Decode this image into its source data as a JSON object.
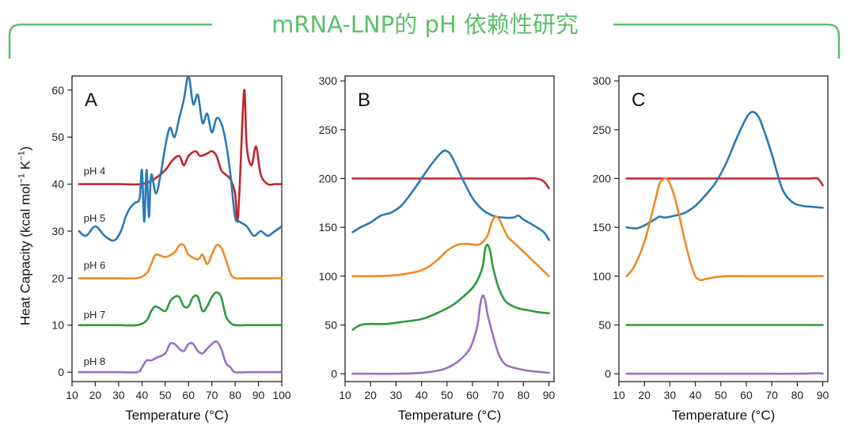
{
  "header": {
    "title": "mRNA-LNP的 pH 依赖性研究",
    "bracket_color": "#5cbf6a"
  },
  "y_axis_label": {
    "main": "Heat Capacity (kcal mol",
    "exp1": "−1",
    "mid": " K",
    "exp2": "−1",
    "end": ")"
  },
  "series_colors": {
    "pH 4": "#c0272d",
    "pH 5": "#2a7ab5",
    "pH 6": "#f08a24",
    "pH 7": "#2e9a3a",
    "pH 8": "#9a70c2"
  },
  "chart_data": [
    {
      "id": "A",
      "type": "line",
      "panel_label": "A",
      "xlabel": "Temperature (°C)",
      "ylabel": "Heat Capacity (kcal mol⁻¹ K⁻¹)",
      "xlim": [
        10,
        100
      ],
      "ylim": [
        -2,
        63
      ],
      "xticks": [
        10,
        20,
        30,
        40,
        50,
        60,
        70,
        80,
        90,
        100
      ],
      "yticks": [
        0,
        10,
        20,
        30,
        40,
        50,
        60
      ],
      "series_labels": [
        {
          "text": "pH 4",
          "series": "pH 4",
          "x": 15,
          "y": 42
        },
        {
          "text": "pH 5",
          "series": "pH 5",
          "x": 15,
          "y": 32
        },
        {
          "text": "pH 6",
          "series": "pH 6",
          "x": 15,
          "y": 22
        },
        {
          "text": "pH 7",
          "series": "pH 7",
          "x": 15,
          "y": 11.5
        },
        {
          "text": "pH 8",
          "series": "pH 8",
          "x": 15,
          "y": 1.5
        }
      ],
      "series": [
        {
          "name": "pH 4",
          "x": [
            13,
            20,
            30,
            40,
            45,
            50,
            53,
            56,
            58,
            60,
            63,
            65,
            68,
            70,
            72,
            74,
            76,
            78,
            80,
            81,
            82,
            83,
            84,
            85,
            87,
            89,
            91,
            94,
            97,
            100
          ],
          "y": [
            40,
            40,
            40,
            40,
            41,
            43,
            45,
            46,
            44,
            46,
            47,
            46,
            46.5,
            47,
            46,
            43,
            42,
            41,
            38,
            32,
            40,
            52,
            60,
            48,
            44,
            48,
            42,
            40,
            40,
            40
          ]
        },
        {
          "name": "pH 5",
          "x": [
            13,
            16,
            20,
            24,
            28,
            31,
            33,
            35,
            37,
            39,
            40,
            41,
            42,
            43,
            44,
            46,
            48,
            50,
            52,
            54,
            56,
            58,
            60,
            62,
            64,
            66,
            68,
            70,
            72,
            74,
            76,
            78,
            80,
            82,
            85,
            88,
            91,
            94,
            97,
            100
          ],
          "y": [
            30,
            29,
            31,
            29,
            28,
            30,
            33,
            35,
            36,
            37,
            43,
            32,
            43,
            33,
            42,
            38,
            42,
            48,
            52,
            50,
            54,
            58,
            63,
            57,
            59,
            53,
            55,
            51,
            54,
            53,
            49,
            42,
            33,
            32,
            31,
            29,
            30,
            29,
            30,
            31
          ]
        },
        {
          "name": "pH 6",
          "x": [
            13,
            20,
            30,
            38,
            42,
            44,
            46,
            50,
            54,
            56,
            58,
            60,
            64,
            66,
            68,
            70,
            72,
            74,
            76,
            78,
            80,
            85,
            90,
            95,
            100
          ],
          "y": [
            20,
            20,
            20,
            20,
            21,
            23,
            25,
            24.5,
            25.5,
            27,
            27,
            25,
            24,
            25,
            23,
            25,
            27,
            26.5,
            24,
            21,
            20,
            20,
            20,
            20,
            20
          ]
        },
        {
          "name": "pH 7",
          "x": [
            13,
            20,
            30,
            38,
            42,
            44,
            46,
            50,
            52,
            54,
            56,
            58,
            60,
            62,
            64,
            66,
            68,
            70,
            72,
            74,
            76,
            78,
            80,
            85,
            90,
            95,
            100
          ],
          "y": [
            10,
            10,
            10,
            10,
            11,
            13,
            14,
            13,
            15,
            16,
            16,
            14,
            14,
            16,
            16,
            13,
            14,
            16,
            17,
            16,
            12,
            10.5,
            10,
            10,
            10,
            10,
            10
          ]
        },
        {
          "name": "pH 8",
          "x": [
            13,
            20,
            30,
            38,
            40,
            42,
            44,
            46,
            50,
            52,
            54,
            56,
            58,
            60,
            62,
            64,
            66,
            68,
            70,
            72,
            74,
            76,
            78,
            80,
            85,
            90,
            95,
            100
          ],
          "y": [
            0,
            0,
            0,
            0,
            1,
            2.5,
            2.5,
            3,
            4,
            6,
            6,
            5,
            4.5,
            6,
            6,
            4.5,
            4,
            5,
            6,
            6.5,
            5,
            2,
            1,
            0,
            0,
            0,
            0,
            0
          ]
        }
      ]
    },
    {
      "id": "B",
      "type": "line",
      "panel_label": "B",
      "xlabel": "Temperature (°C)",
      "xlim": [
        10,
        92
      ],
      "ylim": [
        -8,
        305
      ],
      "xticks": [
        10,
        20,
        30,
        40,
        50,
        60,
        70,
        80,
        90
      ],
      "yticks": [
        0,
        50,
        100,
        150,
        200,
        250,
        300
      ],
      "series": [
        {
          "name": "pH 4",
          "x": [
            13,
            20,
            30,
            40,
            50,
            60,
            70,
            80,
            85,
            88,
            90
          ],
          "y": [
            200,
            200,
            200,
            200,
            200,
            200,
            200,
            200,
            200,
            197,
            190
          ]
        },
        {
          "name": "pH 5",
          "x": [
            13,
            16,
            20,
            24,
            28,
            32,
            36,
            40,
            44,
            48,
            50,
            52,
            56,
            60,
            64,
            68,
            72,
            76,
            78,
            80,
            84,
            88,
            90
          ],
          "y": [
            145,
            150,
            155,
            162,
            165,
            172,
            185,
            200,
            215,
            227,
            228,
            222,
            200,
            180,
            168,
            162,
            160,
            160,
            162,
            158,
            152,
            145,
            137
          ]
        },
        {
          "name": "pH 6",
          "x": [
            13,
            20,
            30,
            40,
            46,
            50,
            54,
            58,
            62,
            64,
            66,
            68,
            70,
            72,
            74,
            78,
            82,
            86,
            90
          ],
          "y": [
            100,
            100,
            101,
            106,
            116,
            126,
            132,
            133,
            132,
            135,
            142,
            158,
            160,
            150,
            140,
            130,
            120,
            110,
            100
          ]
        },
        {
          "name": "pH 7",
          "x": [
            13,
            16,
            20,
            26,
            32,
            40,
            46,
            52,
            56,
            60,
            62,
            64,
            65,
            66,
            67,
            68,
            70,
            72,
            74,
            78,
            82,
            86,
            90
          ],
          "y": [
            45,
            50,
            51,
            51,
            53,
            56,
            62,
            70,
            78,
            88,
            96,
            110,
            128,
            132,
            125,
            110,
            90,
            78,
            72,
            67,
            65,
            63,
            62
          ]
        },
        {
          "name": "pH 8",
          "x": [
            13,
            20,
            30,
            40,
            46,
            50,
            54,
            58,
            60,
            62,
            63,
            64,
            65,
            66,
            68,
            70,
            72,
            74,
            78,
            82,
            86,
            90
          ],
          "y": [
            0,
            0,
            0,
            1,
            3,
            6,
            12,
            22,
            32,
            50,
            70,
            80,
            75,
            60,
            40,
            22,
            12,
            8,
            5,
            3,
            2,
            1
          ]
        }
      ]
    },
    {
      "id": "C",
      "type": "line",
      "panel_label": "C",
      "xlabel": "Temperature (°C)",
      "xlim": [
        10,
        92
      ],
      "ylim": [
        -8,
        305
      ],
      "xticks": [
        10,
        20,
        30,
        40,
        50,
        60,
        70,
        80,
        90
      ],
      "yticks": [
        0,
        50,
        100,
        150,
        200,
        250,
        300
      ],
      "series": [
        {
          "name": "pH 4",
          "x": [
            13,
            20,
            30,
            40,
            50,
            60,
            70,
            80,
            85,
            88,
            90
          ],
          "y": [
            200,
            200,
            200,
            200,
            200,
            200,
            200,
            200,
            200,
            200,
            193
          ]
        },
        {
          "name": "pH 5",
          "x": [
            13,
            17,
            20,
            24,
            26,
            28,
            32,
            36,
            40,
            44,
            48,
            52,
            56,
            60,
            62,
            64,
            66,
            70,
            74,
            78,
            82,
            86,
            90
          ],
          "y": [
            150,
            149,
            152,
            158,
            161,
            160,
            162,
            165,
            172,
            183,
            196,
            215,
            240,
            262,
            268,
            266,
            256,
            225,
            190,
            176,
            172,
            171,
            170
          ]
        },
        {
          "name": "pH 6",
          "x": [
            13,
            16,
            20,
            24,
            26,
            28,
            29,
            30,
            32,
            34,
            36,
            38,
            40,
            42,
            44,
            48,
            52,
            60,
            70,
            80,
            90
          ],
          "y": [
            100,
            110,
            135,
            175,
            195,
            200,
            199,
            195,
            180,
            158,
            135,
            115,
            100,
            96,
            97,
            99,
            100,
            100,
            100,
            100,
            100
          ]
        },
        {
          "name": "pH 7",
          "x": [
            13,
            20,
            30,
            40,
            50,
            60,
            70,
            80,
            90
          ],
          "y": [
            50,
            50,
            50,
            50,
            50,
            50,
            50,
            50,
            50
          ]
        },
        {
          "name": "pH 8",
          "x": [
            13,
            20,
            30,
            40,
            50,
            60,
            70,
            80,
            88,
            90
          ],
          "y": [
            0,
            0,
            0,
            0,
            0,
            0,
            0,
            0,
            0.5,
            0
          ]
        }
      ]
    }
  ]
}
